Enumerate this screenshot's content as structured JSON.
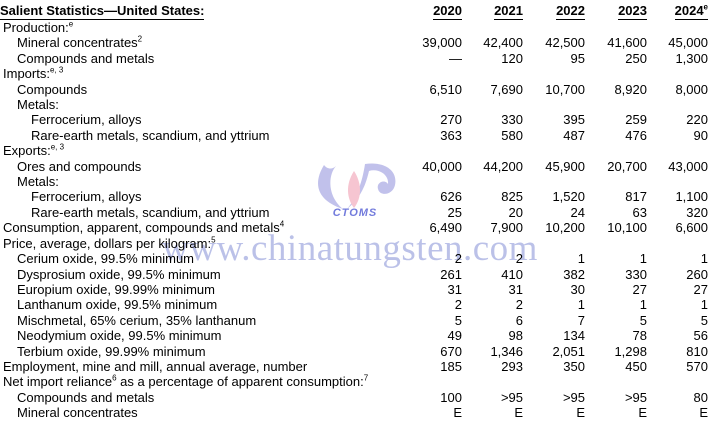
{
  "page": {
    "background": "#ffffff",
    "text_color": "#000000"
  },
  "table": {
    "title": "Salient Statistics—United States:",
    "years": [
      {
        "text": "2020"
      },
      {
        "text": "2021"
      },
      {
        "text": "2022"
      },
      {
        "text": "2023"
      },
      {
        "text": "2024",
        "sup": "e"
      }
    ],
    "rows": [
      {
        "indent": 0,
        "label": [
          {
            "text": "Production:"
          },
          {
            "sup": "e"
          }
        ],
        "cells": [
          "",
          "",
          "",
          "",
          ""
        ]
      },
      {
        "indent": 1,
        "label": [
          {
            "text": "Mineral concentrates"
          },
          {
            "sup": "2"
          }
        ],
        "cells": [
          "39,000",
          "42,400",
          "42,500",
          "41,600",
          "45,000"
        ]
      },
      {
        "indent": 1,
        "label": [
          {
            "text": "Compounds and metals"
          }
        ],
        "cells": [
          "—",
          "120",
          "95",
          "250",
          "1,300"
        ]
      },
      {
        "indent": 0,
        "label": [
          {
            "text": "Imports:"
          },
          {
            "sup": "e, 3"
          }
        ],
        "cells": [
          "",
          "",
          "",
          "",
          ""
        ]
      },
      {
        "indent": 1,
        "label": [
          {
            "text": "Compounds"
          }
        ],
        "cells": [
          "6,510",
          "7,690",
          "10,700",
          "8,920",
          "8,000"
        ]
      },
      {
        "indent": 1,
        "label": [
          {
            "text": "Metals:"
          }
        ],
        "cells": [
          "",
          "",
          "",
          "",
          ""
        ]
      },
      {
        "indent": 2,
        "label": [
          {
            "text": "Ferrocerium, alloys"
          }
        ],
        "cells": [
          "270",
          "330",
          "395",
          "259",
          "220"
        ]
      },
      {
        "indent": 2,
        "label": [
          {
            "text": "Rare-earth metals, scandium, and yttrium"
          }
        ],
        "cells": [
          "363",
          "580",
          "487",
          "476",
          "90"
        ]
      },
      {
        "indent": 0,
        "label": [
          {
            "text": "Exports:"
          },
          {
            "sup": "e, 3"
          }
        ],
        "cells": [
          "",
          "",
          "",
          "",
          ""
        ]
      },
      {
        "indent": 1,
        "label": [
          {
            "text": "Ores and compounds"
          }
        ],
        "cells": [
          "40,000",
          "44,200",
          "45,900",
          "20,700",
          "43,000"
        ]
      },
      {
        "indent": 1,
        "label": [
          {
            "text": "Metals:"
          }
        ],
        "cells": [
          "",
          "",
          "",
          "",
          ""
        ]
      },
      {
        "indent": 2,
        "label": [
          {
            "text": "Ferrocerium, alloys"
          }
        ],
        "cells": [
          "626",
          "825",
          "1,520",
          "817",
          "1,100"
        ]
      },
      {
        "indent": 2,
        "label": [
          {
            "text": "Rare-earth metals, scandium, and yttrium"
          }
        ],
        "cells": [
          "25",
          "20",
          "24",
          "63",
          "320"
        ]
      },
      {
        "indent": 0,
        "label": [
          {
            "text": "Consumption, apparent, compounds and metals"
          },
          {
            "sup": "4"
          }
        ],
        "cells": [
          "6,490",
          "7,900",
          "10,200",
          "10,100",
          "6,600"
        ]
      },
      {
        "indent": 0,
        "label": [
          {
            "text": "Price, average, dollars per kilogram:"
          },
          {
            "sup": "5"
          }
        ],
        "cells": [
          "",
          "",
          "",
          "",
          ""
        ]
      },
      {
        "indent": 1,
        "label": [
          {
            "text": "Cerium oxide, 99.5% minimum"
          }
        ],
        "cells": [
          "2",
          "2",
          "1",
          "1",
          "1"
        ]
      },
      {
        "indent": 1,
        "label": [
          {
            "text": "Dysprosium oxide, 99.5% minimum"
          }
        ],
        "cells": [
          "261",
          "410",
          "382",
          "330",
          "260"
        ]
      },
      {
        "indent": 1,
        "label": [
          {
            "text": "Europium oxide, 99.99% minimum"
          }
        ],
        "cells": [
          "31",
          "31",
          "30",
          "27",
          "27"
        ]
      },
      {
        "indent": 1,
        "label": [
          {
            "text": "Lanthanum oxide, 99.5% minimum"
          }
        ],
        "cells": [
          "2",
          "2",
          "1",
          "1",
          "1"
        ]
      },
      {
        "indent": 1,
        "label": [
          {
            "text": "Mischmetal, 65% cerium, 35% lanthanum"
          }
        ],
        "cells": [
          "5",
          "6",
          "7",
          "5",
          "5"
        ]
      },
      {
        "indent": 1,
        "label": [
          {
            "text": "Neodymium oxide, 99.5% minimum"
          }
        ],
        "cells": [
          "49",
          "98",
          "134",
          "78",
          "56"
        ]
      },
      {
        "indent": 1,
        "label": [
          {
            "text": "Terbium oxide, 99.99% minimum"
          }
        ],
        "cells": [
          "670",
          "1,346",
          "2,051",
          "1,298",
          "810"
        ]
      },
      {
        "indent": 0,
        "label": [
          {
            "text": "Employment, mine and mill, annual average, number"
          }
        ],
        "cells": [
          "185",
          "293",
          "350",
          "450",
          "570"
        ]
      },
      {
        "indent": 0,
        "label": [
          {
            "text": "Net import reliance"
          },
          {
            "sup": "6"
          },
          {
            "text": " as a percentage of apparent consumption:"
          },
          {
            "sup": "7"
          }
        ],
        "cells": [
          "",
          "",
          "",
          "",
          ""
        ]
      },
      {
        "indent": 1,
        "label": [
          {
            "text": "Compounds and metals"
          }
        ],
        "cells": [
          "100",
          ">95",
          ">95",
          ">95",
          "80"
        ]
      },
      {
        "indent": 1,
        "label": [
          {
            "text": "Mineral concentrates"
          }
        ],
        "cells": [
          "E",
          "E",
          "E",
          "E",
          "E"
        ]
      }
    ]
  },
  "watermark": {
    "text": "www.chinatungsten.com",
    "logo_text": "CTOMS",
    "text_color": "#8f99d9",
    "petal_color": "#b7b7e8",
    "center_color": "#f5bcc9",
    "logo_text_color": "#5a64d6"
  }
}
